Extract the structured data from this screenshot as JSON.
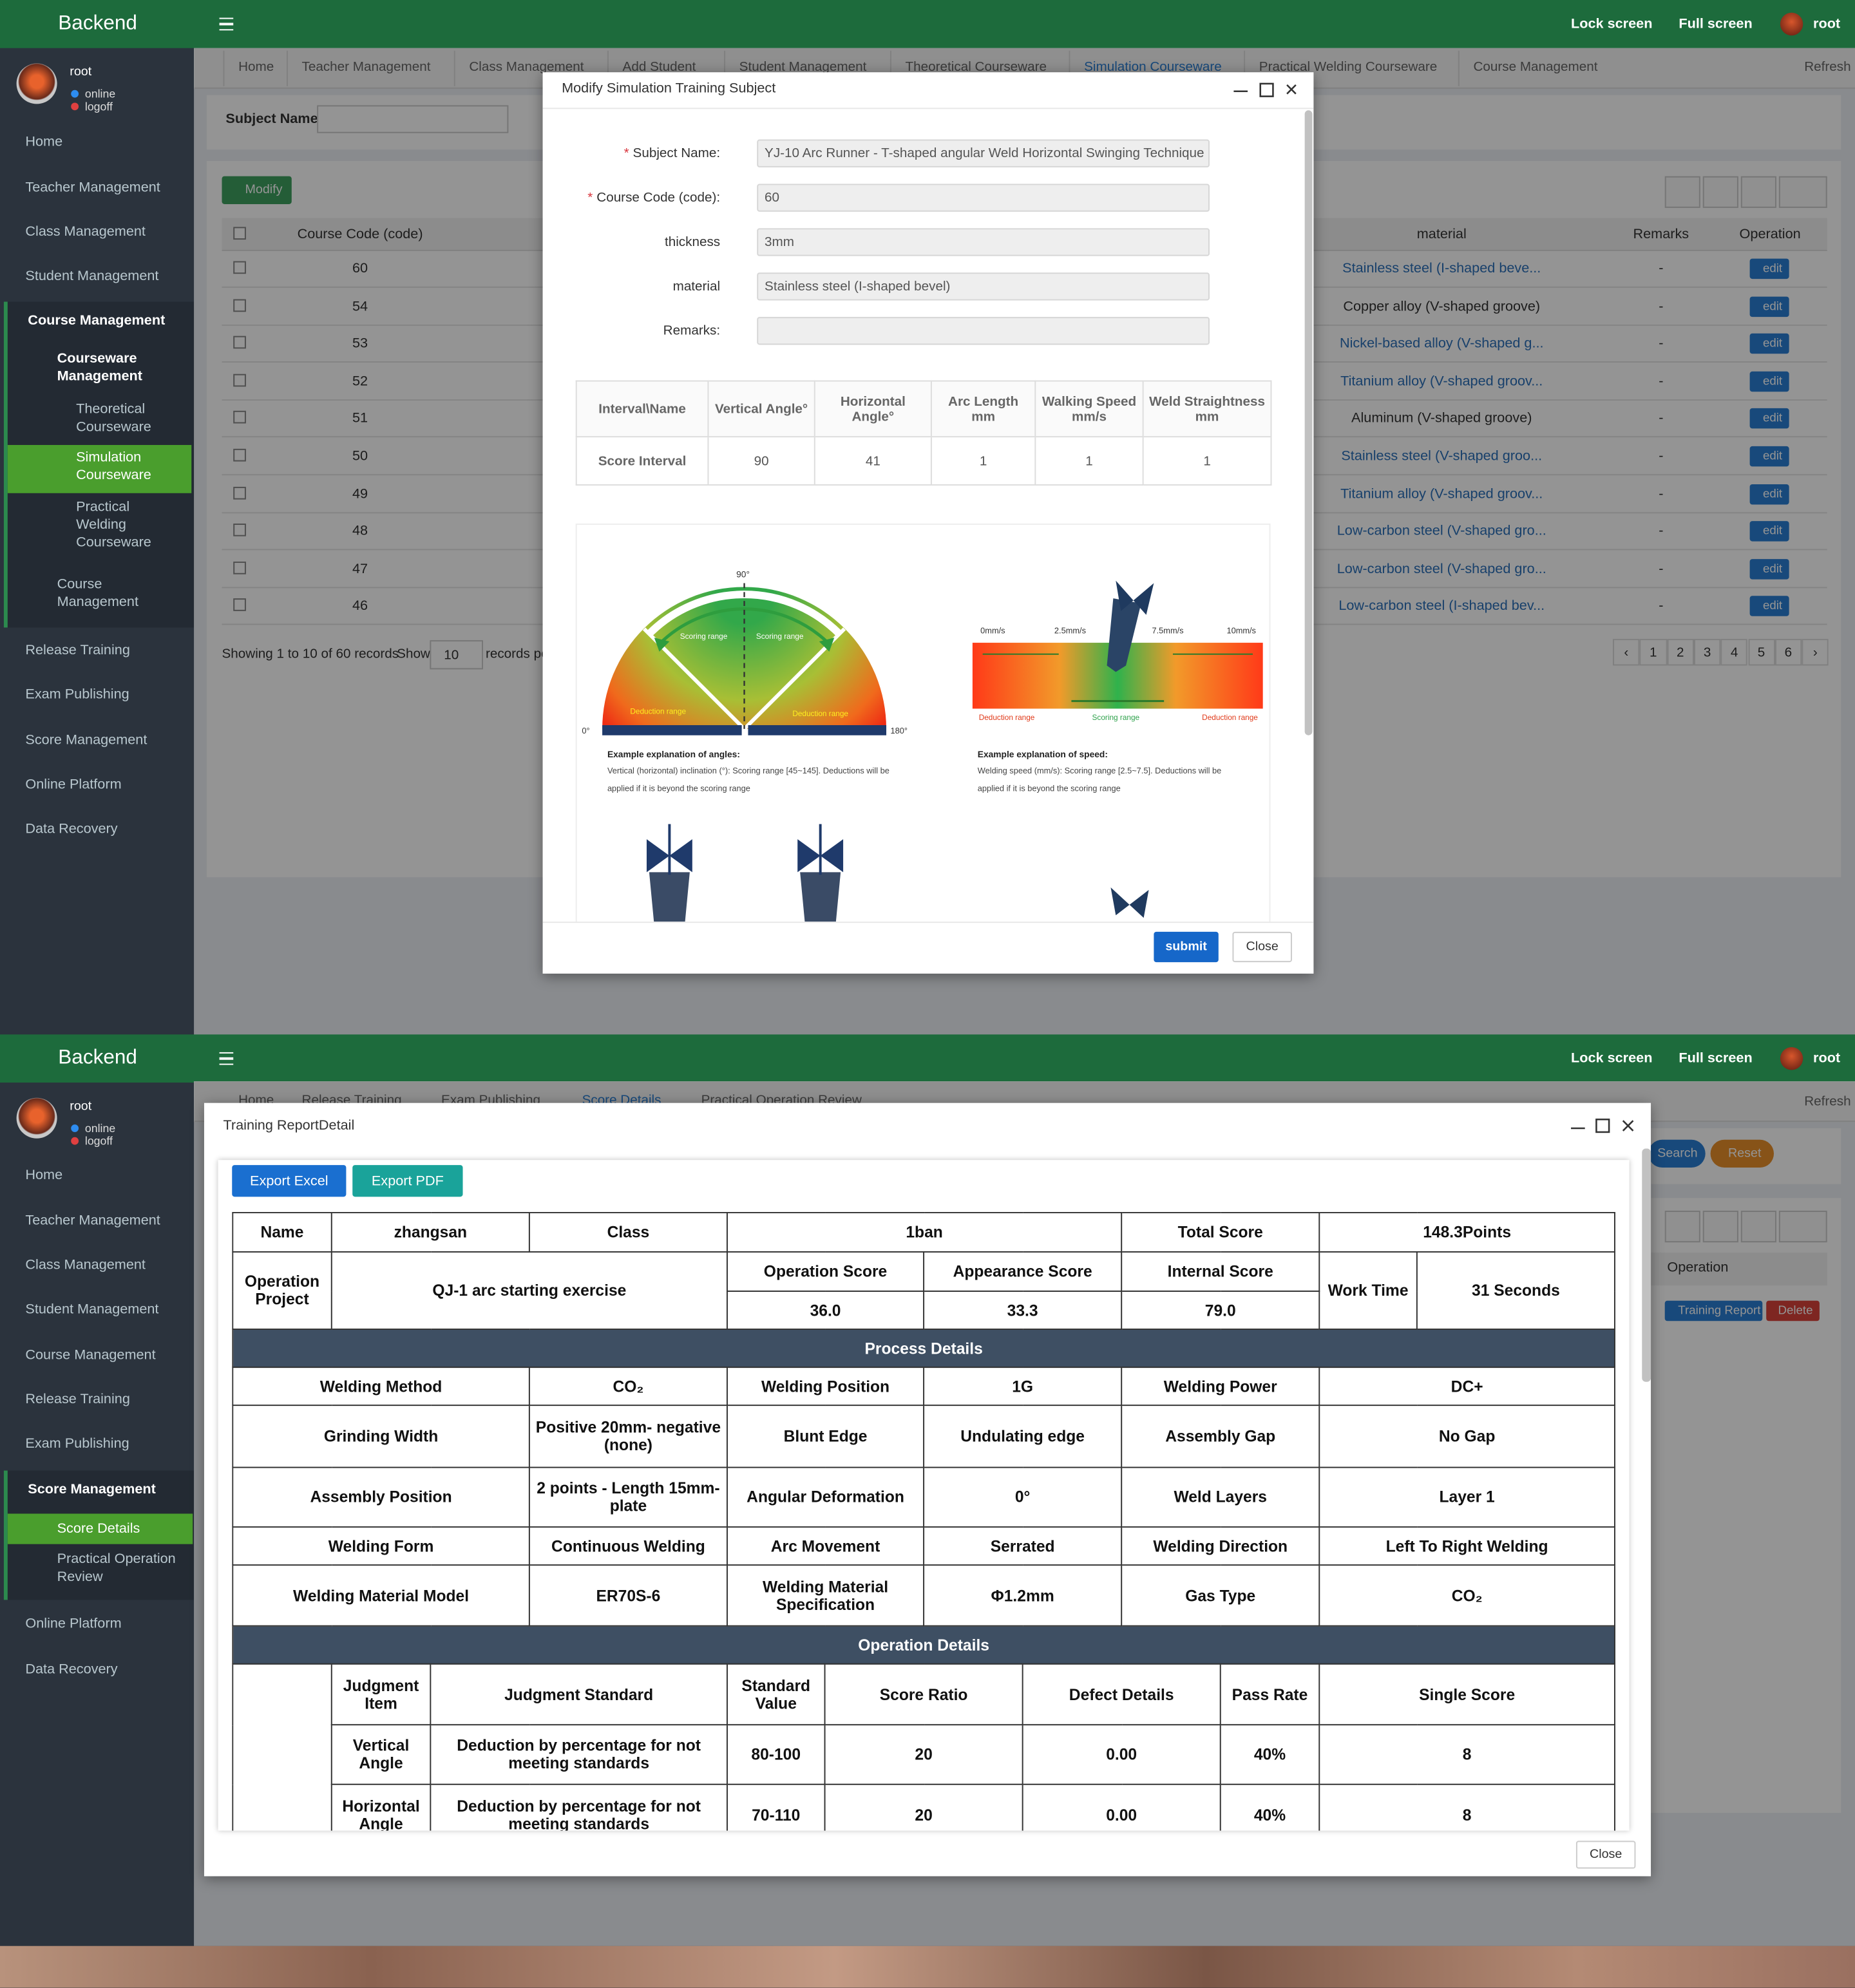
{
  "top": {
    "header": {
      "brand": "Backend",
      "actions": [
        "Lock screen",
        "Full screen"
      ],
      "user": "root"
    },
    "sidebar": {
      "user": "root",
      "status": [
        "online",
        "logoff"
      ],
      "menu": [
        "Home",
        "Teacher Management",
        "Class Management",
        "Student Management",
        "Course Management",
        "Courseware Management",
        "Theoretical Courseware",
        "Simulation Courseware",
        "Practical Welding Courseware",
        "Course Management",
        "Release Training",
        "Exam Publishing",
        "Score Management",
        "Online Platform",
        "Data Recovery"
      ]
    },
    "tabs": [
      "Home",
      "Teacher Management",
      "Class Management",
      "Add Student",
      "Student Management",
      "Theoretical Courseware",
      "Simulation Courseware",
      "Practical Welding Courseware",
      "Course Management"
    ],
    "refresh": "Refresh",
    "search_label": "Subject Name:",
    "modify_button": "Modify",
    "list": {
      "columns": [
        "Course Code (code)",
        "material",
        "Remarks",
        "Operation"
      ],
      "rows": [
        {
          "code": 60,
          "material": "Stainless steel (I-shaped beve...",
          "remarks": "-",
          "operation": "edit"
        },
        {
          "code": 54,
          "material": "Copper alloy (V-shaped groove)",
          "remarks": "-",
          "operation": "edit"
        },
        {
          "code": 53,
          "material": "Nickel-based alloy (V-shaped g...",
          "remarks": "-",
          "operation": "edit"
        },
        {
          "code": 52,
          "material": "Titanium alloy (V-shaped groov...",
          "remarks": "-",
          "operation": "edit"
        },
        {
          "code": 51,
          "material": "Aluminum (V-shaped groove)",
          "remarks": "-",
          "operation": "edit"
        },
        {
          "code": 50,
          "material": "Stainless steel (V-shaped groo...",
          "remarks": "-",
          "operation": "edit"
        },
        {
          "code": 49,
          "material": "Titanium alloy (V-shaped groov...",
          "remarks": "-",
          "operation": "edit"
        },
        {
          "code": 48,
          "material": "Low-carbon steel (V-shaped gro...",
          "remarks": "-",
          "operation": "edit"
        },
        {
          "code": 47,
          "material": "Low-carbon steel (V-shaped gro...",
          "remarks": "-",
          "operation": "edit"
        },
        {
          "code": 46,
          "material": "Low-carbon steel (I-shaped bev...",
          "remarks": "-",
          "operation": "edit"
        }
      ],
      "summary": "Showing 1 to 10 of 60 records",
      "show": "Show",
      "page_size": "10",
      "per_page": "records per page",
      "prev": "‹",
      "pages": [
        "1",
        "2",
        "3",
        "4",
        "5",
        "6"
      ],
      "next": "›"
    },
    "modal": {
      "title": "Modify Simulation Training Subject",
      "required_mark": "*",
      "fields": [
        {
          "label": "Subject Name:",
          "value": "YJ-10 Arc Runner - T-shaped angular Weld Horizontal Swinging Technique",
          "required": true
        },
        {
          "label": "Course Code (code):",
          "value": "60",
          "required": true
        },
        {
          "label": "thickness",
          "value": "3mm"
        },
        {
          "label": "material",
          "value": "Stainless steel (I-shaped bevel)"
        },
        {
          "label": "Remarks:"
        }
      ],
      "interval_table": {
        "columns": [
          "Interval\\Name",
          "Vertical Angle°",
          "Horizontal Angle°",
          "Arc Length mm",
          "Walking Speed mm/s",
          "Weld Straightness mm"
        ],
        "rows": [
          [
            "Score Interval",
            "90",
            "41",
            "1",
            "1",
            "1"
          ]
        ]
      },
      "figure": {
        "angle": {
          "top": "90°",
          "scoring": [
            "Scoring range",
            "Scoring range"
          ],
          "deduction": [
            "Deduction range",
            "Deduction range"
          ],
          "left": "0°",
          "right": "180°",
          "caption_title": "Example explanation of angles:",
          "caption": "Vertical (horizontal) inclination (°): Scoring range [45~145]. Deductions will be applied if it is beyond the scoring range"
        },
        "speed": {
          "ticks": [
            "0mm/s",
            "2.5mm/s",
            "7.5mm/s",
            "10mm/s"
          ],
          "ranges": [
            "Deduction range",
            "Scoring range",
            "Deduction range"
          ],
          "caption_title": "Example explanation of speed:",
          "caption": "Welding speed (mm/s): Scoring range [2.5~7.5]. Deductions will be applied if it is beyond the scoring range"
        }
      },
      "buttons": [
        "submit",
        "Close"
      ]
    }
  },
  "bottom": {
    "header": {
      "brand": "Backend",
      "actions": [
        "Lock screen",
        "Full screen"
      ],
      "user": "root"
    },
    "sidebar": {
      "user": "root",
      "status": [
        "online",
        "logoff"
      ],
      "menu": [
        "Home",
        "Teacher Management",
        "Class Management",
        "Student Management",
        "Course Management",
        "Release Training",
        "Exam Publishing",
        "Score Management",
        "Score Details",
        "Practical Operation Review",
        "Online Platform",
        "Data Recovery"
      ]
    },
    "tabs": [
      "Home",
      "Release Training",
      "Exam Publishing",
      "Score Details",
      "Practical Operation Review"
    ],
    "refresh": "Refresh",
    "toolbar": [
      "Search",
      "Reset"
    ],
    "list": {
      "columns": [
        "Operation"
      ],
      "row_actions": [
        "Training Report",
        "Delete"
      ]
    },
    "modal": {
      "title": "Training ReportDetail",
      "exports": [
        "Export Excel",
        "Export PDF"
      ],
      "table": {
        "rows": [
          [
            "Name",
            "zhangsan",
            "Class",
            "1ban",
            "Total Score",
            "148.3Points"
          ],
          [
            "Operation Project",
            "QJ-1 arc starting exercise",
            "Operation Score",
            "Appearance Score",
            "Internal Score",
            "Work Time",
            "31 Seconds"
          ],
          [
            "36.0",
            "33.3",
            "79.0"
          ],
          [
            "Process Details"
          ],
          [
            "Welding Method",
            "CO₂",
            "Welding Position",
            "1G",
            "Welding Power",
            "DC+"
          ],
          [
            "Grinding Width",
            "Positive 20mm- negative (none)",
            "Blunt Edge",
            "Undulating edge",
            "Assembly Gap",
            "No Gap"
          ],
          [
            "Assembly Position",
            "2 points - Length 15mm-plate",
            "Angular Deformation",
            "0°",
            "Weld Layers",
            "Layer 1"
          ],
          [
            "Welding Form",
            "Continuous Welding",
            "Arc Movement",
            "Serrated",
            "Welding Direction",
            "Left To Right Welding"
          ],
          [
            "Welding Material Model",
            "ER70S-6",
            "Welding Material Specification",
            "Φ1.2mm",
            "Gas Type",
            "CO₂"
          ],
          [
            "Operation Details"
          ],
          [
            "Judgment Item",
            "Judgment Standard",
            "Standard Value",
            "Score Ratio",
            "Defect Details",
            "Pass Rate",
            "Single Score"
          ],
          [
            "Vertical Angle",
            "Deduction by percentage for not meeting standards",
            "80-100",
            "20",
            "0.00",
            "40%",
            "8"
          ],
          [
            "Horizontal Angle",
            "Deduction by percentage for not meeting standards",
            "70-110",
            "20",
            "0.00",
            "40%",
            "8"
          ]
        ]
      },
      "close": "Close"
    }
  }
}
